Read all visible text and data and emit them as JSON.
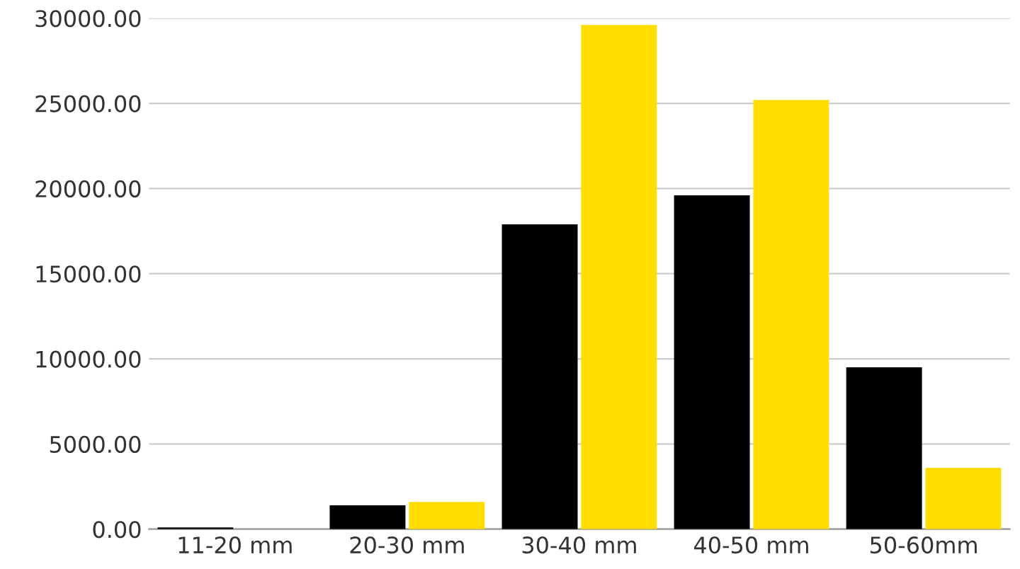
{
  "chart_data": {
    "type": "bar",
    "categories": [
      "11-20 mm",
      "20-30 mm",
      "30-40 mm",
      "40-50 mm",
      "50-60mm"
    ],
    "series": [
      {
        "color": "#000000",
        "values": [
          100,
          1400,
          17900,
          19600,
          9500
        ]
      },
      {
        "color": "#ffdd00",
        "values": [
          null,
          1600,
          29600,
          25200,
          3600
        ]
      }
    ],
    "ylim": [
      0,
      30000
    ],
    "yticks": [
      {
        "value": 0,
        "label": "0.00"
      },
      {
        "value": 5000,
        "label": "5000.00"
      },
      {
        "value": 10000,
        "label": "10000.00"
      },
      {
        "value": 15000,
        "label": "15000.00"
      },
      {
        "value": 20000,
        "label": "20000.00"
      },
      {
        "value": 25000,
        "label": "25000.00"
      },
      {
        "value": 30000,
        "label": "30000.00"
      }
    ],
    "grid": "y"
  }
}
